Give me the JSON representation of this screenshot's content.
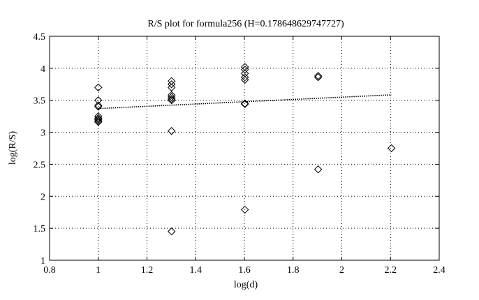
{
  "chart_data": {
    "type": "scatter",
    "title": "R/S plot for formula256 (H=0.178648629747727)",
    "xlabel": "log(d)",
    "ylabel": "log(R/S)",
    "xlim": [
      0.8,
      2.4
    ],
    "ylim": [
      1,
      4.5
    ],
    "xticks": [
      "0.8",
      "1",
      "1.2",
      "1.4",
      "1.6",
      "1.8",
      "2",
      "2.2",
      "2.4"
    ],
    "yticks": [
      "1",
      "1.5",
      "2",
      "2.5",
      "3",
      "3.5",
      "4",
      "4.5"
    ],
    "grid": true,
    "series": [
      {
        "marker": "diamond",
        "x": [
          1,
          1,
          1,
          1,
          1,
          1,
          1,
          1,
          1,
          1.301,
          1.301,
          1.301,
          1.301,
          1.301,
          1.301,
          1.301,
          1.301,
          1.301,
          1.602,
          1.602,
          1.602,
          1.602,
          1.602,
          1.602,
          1.602,
          1.602,
          1.903,
          1.903,
          1.903,
          2.204
        ],
        "y": [
          3.7,
          3.5,
          3.42,
          3.4,
          3.25,
          3.22,
          3.2,
          3.18,
          3.16,
          3.8,
          3.75,
          3.7,
          3.58,
          3.55,
          3.52,
          3.5,
          3.02,
          1.45,
          4.02,
          3.98,
          3.92,
          3.86,
          3.82,
          3.45,
          3.44,
          1.79,
          3.88,
          3.86,
          2.42,
          2.75
        ]
      }
    ],
    "fit_line": {
      "x": [
        1,
        2.204
      ],
      "y": [
        3.37,
        3.585
      ],
      "style": "dotted"
    }
  }
}
